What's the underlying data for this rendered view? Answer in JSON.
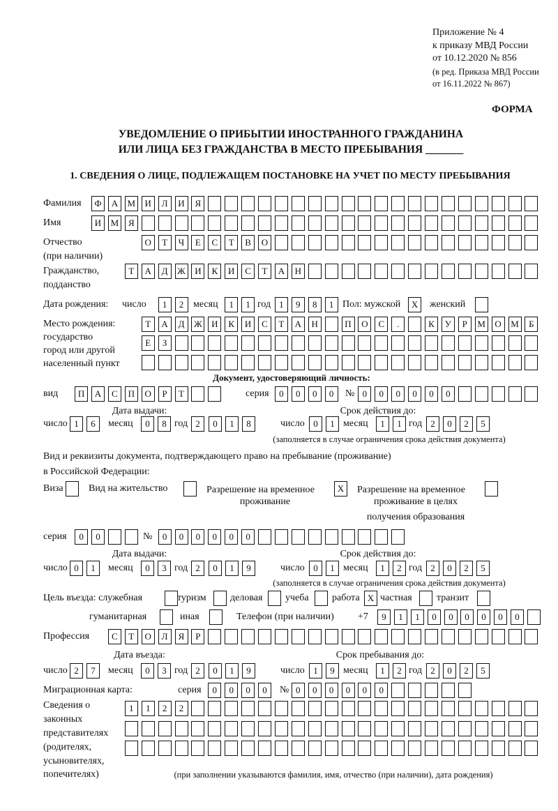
{
  "header": {
    "appendix": "Приложение № 4",
    "order": "к приказу МВД России",
    "order_date": "от 10.12.2020 № 856",
    "edition_1": "(в ред. Приказа МВД России",
    "edition_2": "от 16.11.2022 № 867)",
    "form_label": "ФОРМА"
  },
  "title": {
    "line1": "УВЕДОМЛЕНИЕ О ПРИБЫТИИ ИНОСТРАННОГО ГРАЖДАНИНА",
    "line2": "ИЛИ ЛИЦА БЕЗ ГРАЖДАНСТВА В МЕСТО ПРЕБЫВАНИЯ _______"
  },
  "section1": {
    "heading": "1. СВЕДЕНИЯ О ЛИЦЕ, ПОДЛЕЖАЩЕМ ПОСТАНОВКЕ НА УЧЕТ ПО МЕСТУ ПРЕБЫВАНИЯ",
    "labels": {
      "surname": "Фамилия",
      "name": "Имя",
      "patronymic": "Отчество",
      "patronymic_note": "(при наличии)",
      "citizenship_1": "Гражданство,",
      "citizenship_2": "подданство",
      "birth_date": "Дата рождения:",
      "day": "число",
      "month": "месяц",
      "year": "год",
      "sex": "Пол: мужской",
      "female": "женский",
      "birthplace_1": "Место рождения:",
      "birthplace_2": "государство",
      "birthplace_3": "город или другой",
      "birthplace_4": "населенный пункт",
      "id_doc": "Документ, удостоверяющий личность:",
      "kind": "вид",
      "series": "серия",
      "number": "№",
      "issue_date": "Дата выдачи:",
      "valid_until": "Срок действия до:",
      "validity_note": "(заполняется в случае ограничения срока действия документа)",
      "residence_doc_1": "Вид и реквизиты документа, подтверждающего право на пребывание (проживание)",
      "residence_doc_2": "в Российской Федерации:",
      "visa": "Виза",
      "residence_permit": "Вид на жительство",
      "temp_permit_1": "Разрешение на временное",
      "temp_permit_2": "проживание",
      "edu_permit_1": "Разрешение на временное",
      "edu_permit_2": "проживание в целях",
      "edu_permit_3": "получения образования",
      "purpose": "Цель въезда: служебная",
      "tourism": "туризм",
      "business": "деловая",
      "study": "учеба",
      "work": "работа",
      "private": "частная",
      "transit": "транзит",
      "humanitarian": "гуманитарная",
      "other": "иная",
      "phone": "Телефон (при наличии)",
      "phone_prefix": "+7",
      "profession": "Профессия",
      "entry_date": "Дата въезда:",
      "stay_until": "Срок пребывания до:",
      "migration_card": "Миграционная карта:",
      "reps_1": "Сведения о",
      "reps_2": "законных",
      "reps_3": "представителях",
      "reps_4": "(родителях,",
      "reps_5": "усыновителях,",
      "reps_6": "попечителях)",
      "reps_note": "(при заполнении указываются фамилия, имя, отчество (при наличии), дата рождения)"
    },
    "surname": "ФАМИЛИЯ",
    "name": "ИМЯ",
    "patronymic": "ОТЧЕСТВО",
    "citizenship": "ТАДЖИКИСТАН",
    "birth_day": "12",
    "birth_month": "11",
    "birth_year": "1981",
    "sex_male": "X",
    "sex_female": "",
    "birthplace": [
      "ТАДЖИКИСТАН ПОС. КУРМОМБ",
      "ЕЗ",
      ""
    ],
    "id_kind": "ПАСПОРТ",
    "id_series": "0000",
    "id_number": "000000",
    "id_issue_day": "16",
    "id_issue_month": "08",
    "id_issue_year": "2018",
    "id_valid_day": "01",
    "id_valid_month": "11",
    "id_valid_year": "2025",
    "doc_visa": "",
    "doc_residence_permit": "",
    "doc_temp_permit": "X",
    "doc_edu_permit": "",
    "doc_series": "00",
    "doc_number": "000000",
    "doc_issue_day": "01",
    "doc_issue_month": "03",
    "doc_issue_year": "2019",
    "doc_valid_day": "01",
    "doc_valid_month": "12",
    "doc_valid_year": "2025",
    "purpose_official": "",
    "purpose_tourism": "",
    "purpose_business": "",
    "purpose_study": "",
    "purpose_work": "X",
    "purpose_private": "",
    "purpose_transit": "",
    "purpose_humanitarian": "",
    "purpose_other": "",
    "phone": "911000000",
    "profession": "СТОЛЯР",
    "entry_day": "27",
    "entry_month": "03",
    "entry_year": "2019",
    "stay_day": "19",
    "stay_month": "12",
    "stay_year": "2025",
    "mig_series": "0000",
    "mig_number": "000000",
    "representatives": [
      "1122",
      "",
      ""
    ]
  }
}
